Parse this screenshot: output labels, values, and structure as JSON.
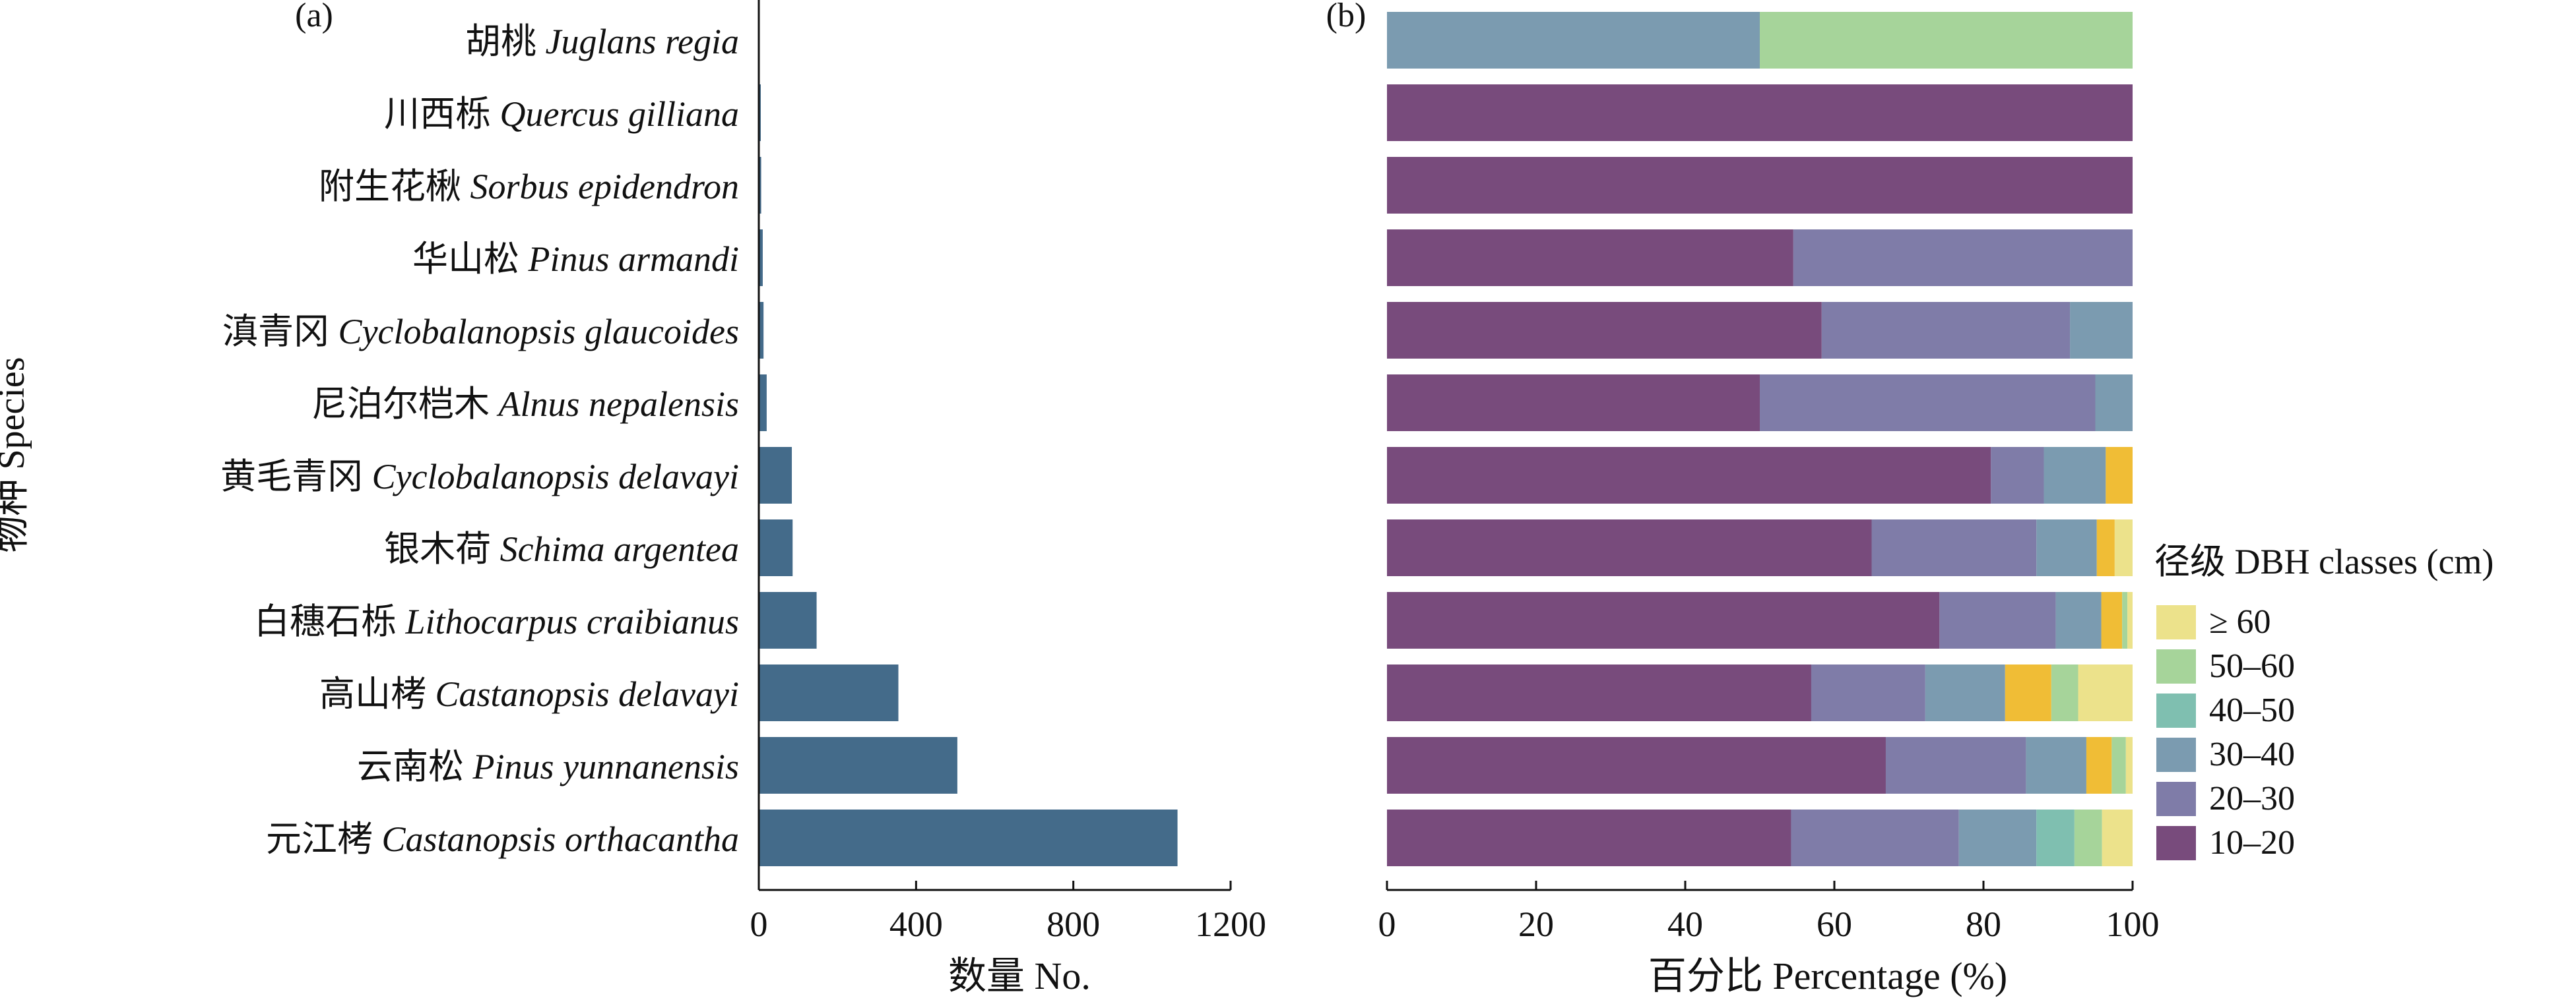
{
  "chart_data": [
    {
      "panel_label": "(a)",
      "type": "bar",
      "orientation": "horizontal",
      "ylabel": "物种 Species",
      "xlabel": "数量 No.",
      "xlim": [
        0,
        1200
      ],
      "xticks": [
        "0",
        "400",
        "800",
        "1200"
      ],
      "categories": [
        {
          "zh": "胡桃",
          "latin": "Juglans regia"
        },
        {
          "zh": "川西栎",
          "latin": "Quercus gilliana"
        },
        {
          "zh": "附生花楸",
          "latin": "Sorbus epidendron"
        },
        {
          "zh": "华山松",
          "latin": "Pinus armandi"
        },
        {
          "zh": "滇青冈",
          "latin": "Cyclobalanopsis glaucoides"
        },
        {
          "zh": "尼泊尔桤木",
          "latin": "Alnus nepalensis"
        },
        {
          "zh": "黄毛青冈",
          "latin": "Cyclobalanopsis delavayi"
        },
        {
          "zh": "银木荷",
          "latin": "Schima argentea"
        },
        {
          "zh": "白穗石栎",
          "latin": "Lithocarpus craibianus"
        },
        {
          "zh": "高山栲",
          "latin": "Castanopsis delavayi"
        },
        {
          "zh": "云南松",
          "latin": "Pinus yunnanensis"
        },
        {
          "zh": "元江栲",
          "latin": "Castanopsis orthacantha"
        }
      ],
      "values": [
        2,
        5,
        6,
        10,
        12,
        20,
        84,
        86,
        147,
        355,
        505,
        1065
      ],
      "color": "#446b8a",
      "grid": false
    },
    {
      "panel_label": "(b)",
      "type": "bar",
      "orientation": "horizontal",
      "stacked": true,
      "xlabel": "百分比 Percentage (%)",
      "xlim": [
        0,
        100
      ],
      "xticks": [
        "0",
        "20",
        "40",
        "60",
        "80",
        "100"
      ],
      "legend_title": "径级 DBH classes (cm)",
      "legend_position": "right",
      "series": [
        {
          "name": "10–20",
          "color": "#784b7c",
          "values": [
            0,
            100,
            100,
            54.5,
            58.3,
            50,
            81,
            65,
            74.1,
            56.9,
            66.9,
            54.2
          ]
        },
        {
          "name": "20–30",
          "color": "#7f7ca8",
          "values": [
            0,
            0,
            0,
            45.5,
            33.3,
            45,
            7.1,
            22.1,
            15.6,
            15.3,
            18.8,
            22.5
          ]
        },
        {
          "name": "30–40",
          "color": "#7b9bb0",
          "values": [
            50,
            0,
            0,
            0,
            8.4,
            5,
            8.3,
            8.1,
            6.1,
            10.7,
            8.1,
            10.4
          ]
        },
        {
          "name": "40–50",
          "color": "#7fbfb0",
          "values": [
            0,
            0,
            0,
            0,
            0,
            0,
            0,
            0,
            0,
            0,
            0,
            5.1
          ]
        },
        {
          "name": "50–60",
          "color": "#a6d49a",
          "values": [
            50,
            0,
            0,
            0,
            0,
            0,
            0,
            0,
            0.7,
            3.6,
            1.9,
            3.7
          ]
        },
        {
          "name": "≥ 60",
          "color": "#ece28b",
          "values": [
            0,
            0,
            0,
            0,
            0,
            0,
            0,
            2.4,
            0.7,
            7.3,
            0.9,
            4.1
          ]
        },
        {
          "name": "",
          "color": "#f0bd36",
          "values": [
            0,
            0,
            0,
            0,
            0,
            0,
            3.6,
            2.4,
            2.8,
            6.2,
            3.4,
            0
          ]
        }
      ],
      "legend_entries": [
        "≥ 60",
        "50–60",
        "40–50",
        "30–40",
        "20–30",
        "10–20"
      ],
      "grid": false
    }
  ]
}
